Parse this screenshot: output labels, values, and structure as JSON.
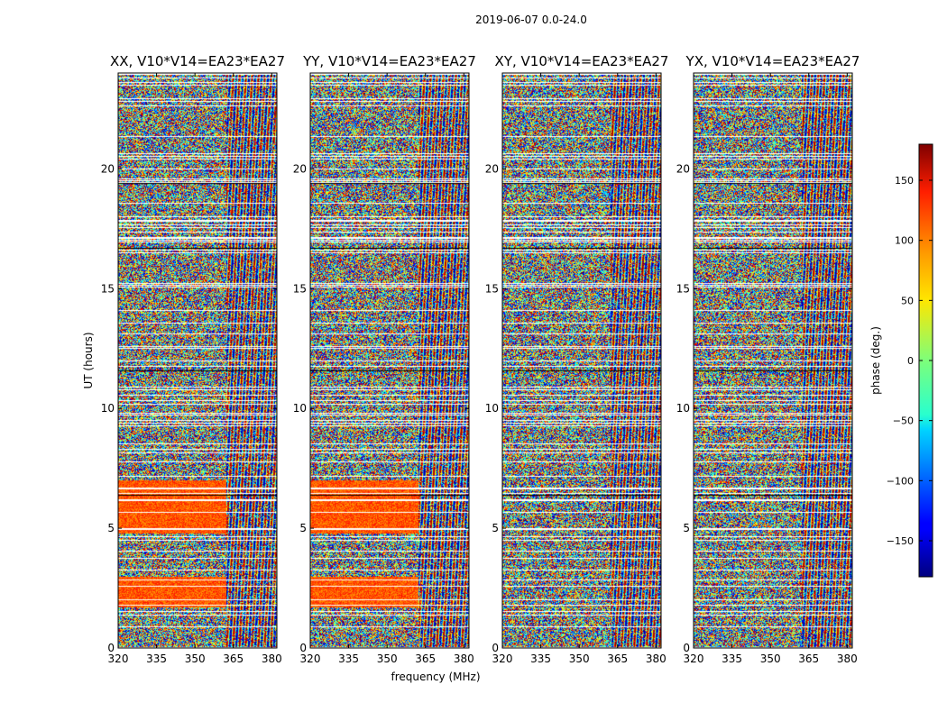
{
  "chart_data": {
    "type": "heatmap",
    "suptitle": "2019-06-07 0.0-24.0",
    "xlabel": "frequency (MHz)",
    "ylabel": "UT (hours)",
    "xlim": [
      320,
      382
    ],
    "ylim": [
      0,
      24
    ],
    "x_ticks": [
      320,
      335,
      350,
      365,
      380
    ],
    "y_ticks": [
      0,
      5,
      10,
      15,
      20
    ],
    "panels": [
      {
        "title": "XX, V10*V14=EA23*EA27",
        "polarization": "XX"
      },
      {
        "title": "YY, V10*V14=EA23*EA27",
        "polarization": "YY"
      },
      {
        "title": "XY, V10*V14=EA23*EA27",
        "polarization": "XY"
      },
      {
        "title": "YX, V10*V14=EA23*EA27",
        "polarization": "YX"
      }
    ],
    "colorbar": {
      "label": "phase (deg.)",
      "range": [
        -180,
        180
      ],
      "ticks": [
        150,
        100,
        50,
        0,
        -50,
        -100,
        -150
      ],
      "tick_labels": [
        "150",
        "100",
        "50",
        "0",
        "−50",
        "−100",
        "−150"
      ],
      "colormap": "jet"
    }
  }
}
